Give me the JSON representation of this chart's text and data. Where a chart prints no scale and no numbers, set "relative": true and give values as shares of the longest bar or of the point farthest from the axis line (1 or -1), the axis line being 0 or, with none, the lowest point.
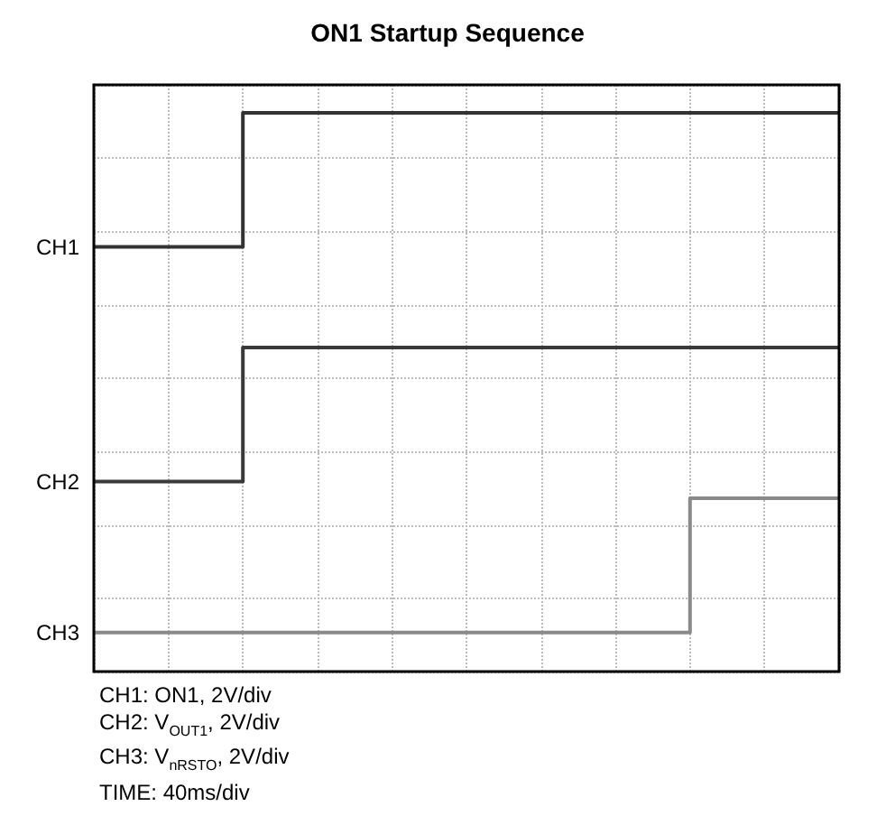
{
  "chart_data": {
    "type": "step",
    "title": "ON1 Startup Sequence",
    "relative": true,
    "categories": [
      null,
      null,
      null,
      null,
      null,
      null,
      null,
      null,
      null,
      null,
      null,
      null,
      null,
      null,
      null,
      null,
      null,
      null,
      null,
      null,
      null,
      null,
      null,
      null,
      null,
      null,
      null,
      null,
      null,
      null,
      null,
      null,
      null,
      null,
      null,
      null,
      null,
      null,
      null,
      null,
      null,
      null,
      null,
      null,
      null,
      null,
      null,
      null,
      null,
      null,
      null
    ],
    "series": [
      {
        "name": "CH1",
        "color": "#333333",
        "values": [
          0.76,
          0.76,
          0.76,
          0.76,
          0.76,
          0.76,
          0.76,
          0.76,
          0.76,
          0.76,
          1,
          1,
          1,
          1,
          1,
          1,
          1,
          1,
          1,
          1,
          1,
          1,
          1,
          1,
          1,
          1,
          1,
          1,
          1,
          1,
          1,
          1,
          1,
          1,
          1,
          1,
          1,
          1,
          1,
          1,
          1,
          1,
          1,
          1,
          1,
          1,
          1,
          1,
          1,
          1,
          1
        ]
      },
      {
        "name": "CH2",
        "color": "#3a3a3a",
        "values": [
          0.34,
          0.34,
          0.34,
          0.34,
          0.34,
          0.34,
          0.34,
          0.34,
          0.34,
          0.34,
          0.58,
          0.58,
          0.58,
          0.58,
          0.58,
          0.58,
          0.58,
          0.58,
          0.58,
          0.58,
          0.58,
          0.58,
          0.58,
          0.58,
          0.58,
          0.58,
          0.58,
          0.58,
          0.58,
          0.58,
          0.58,
          0.58,
          0.58,
          0.58,
          0.58,
          0.58,
          0.58,
          0.58,
          0.58,
          0.58,
          0.58,
          0.58,
          0.58,
          0.58,
          0.58,
          0.58,
          0.58,
          0.58,
          0.58,
          0.58,
          0.58
        ]
      },
      {
        "name": "CH3",
        "color": "#8a8a8a",
        "values": [
          0.07,
          0.07,
          0.07,
          0.07,
          0.07,
          0.07,
          0.07,
          0.07,
          0.07,
          0.07,
          0.07,
          0.07,
          0.07,
          0.07,
          0.07,
          0.07,
          0.07,
          0.07,
          0.07,
          0.07,
          0.07,
          0.07,
          0.07,
          0.07,
          0.07,
          0.07,
          0.07,
          0.07,
          0.07,
          0.07,
          0.07,
          0.07,
          0.07,
          0.07,
          0.07,
          0.07,
          0.07,
          0.07,
          0.07,
          0.07,
          0.31,
          0.31,
          0.31,
          0.31,
          0.31,
          0.31,
          0.31,
          0.31,
          0.31,
          0.31,
          0.31
        ]
      }
    ],
    "grid": true,
    "legend": false,
    "marker": "none",
    "line_style": "solid",
    "annotations": [
      "CH1: ON1, 2V/div",
      "CH2: V$_{OUT1}$, 2V/div",
      "CH3: V$_{nRSTO}$, 2V/div",
      "TIME: 40ms/div"
    ]
  }
}
